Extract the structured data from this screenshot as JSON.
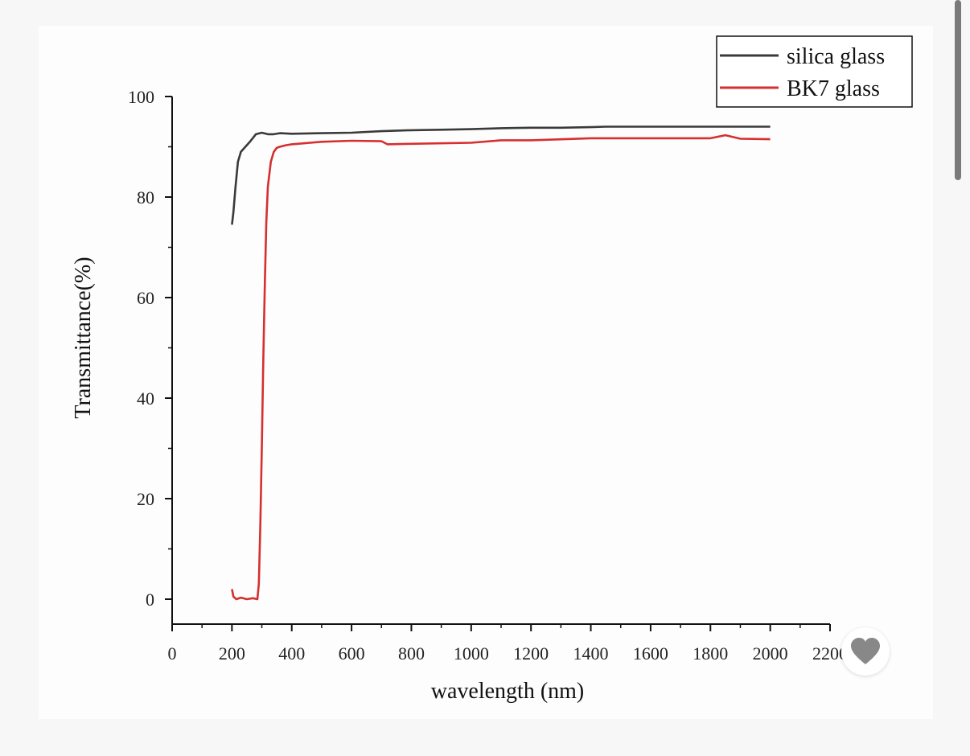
{
  "chart_data": {
    "type": "line",
    "xlabel": "wavelength (nm)",
    "ylabel": "Transmittance(%)",
    "xlim": [
      0,
      2200
    ],
    "ylim": [
      -5,
      100
    ],
    "xticks": [
      0,
      200,
      400,
      600,
      800,
      1000,
      1200,
      1400,
      1600,
      1800,
      2000,
      2200
    ],
    "yticks": [
      0,
      20,
      40,
      60,
      80,
      100
    ],
    "grid": false,
    "legend_position": "top-right",
    "series": [
      {
        "name": "silica glass",
        "color": "#3a3a3a",
        "x": [
          200,
          205,
          212,
          220,
          230,
          245,
          260,
          280,
          300,
          320,
          340,
          360,
          400,
          500,
          600,
          700,
          800,
          900,
          1000,
          1100,
          1200,
          1300,
          1400,
          1450,
          1500,
          1600,
          1700,
          1800,
          1900,
          2000
        ],
        "y": [
          74.5,
          77,
          82,
          87,
          89,
          90,
          91,
          92.5,
          92.8,
          92.5,
          92.5,
          92.7,
          92.6,
          92.7,
          92.8,
          93.1,
          93.3,
          93.4,
          93.5,
          93.7,
          93.8,
          93.8,
          93.9,
          94,
          94,
          94,
          94,
          94,
          94,
          94
        ]
      },
      {
        "name": "BK7 glass",
        "color": "#d62f2f",
        "x": [
          200,
          205,
          215,
          230,
          250,
          270,
          285,
          290,
          295,
          300,
          305,
          310,
          315,
          320,
          330,
          340,
          350,
          360,
          380,
          400,
          500,
          600,
          700,
          720,
          800,
          1000,
          1100,
          1200,
          1400,
          1600,
          1800,
          1850,
          1900,
          2000
        ],
        "y": [
          2,
          0.5,
          0,
          0.3,
          0,
          0.2,
          0,
          3,
          15,
          30,
          48,
          63,
          75,
          82,
          87,
          89,
          89.8,
          90,
          90.3,
          90.5,
          91,
          91.2,
          91.1,
          90.5,
          90.6,
          90.8,
          91.3,
          91.3,
          91.7,
          91.7,
          91.7,
          92.3,
          91.6,
          91.5
        ]
      }
    ]
  }
}
